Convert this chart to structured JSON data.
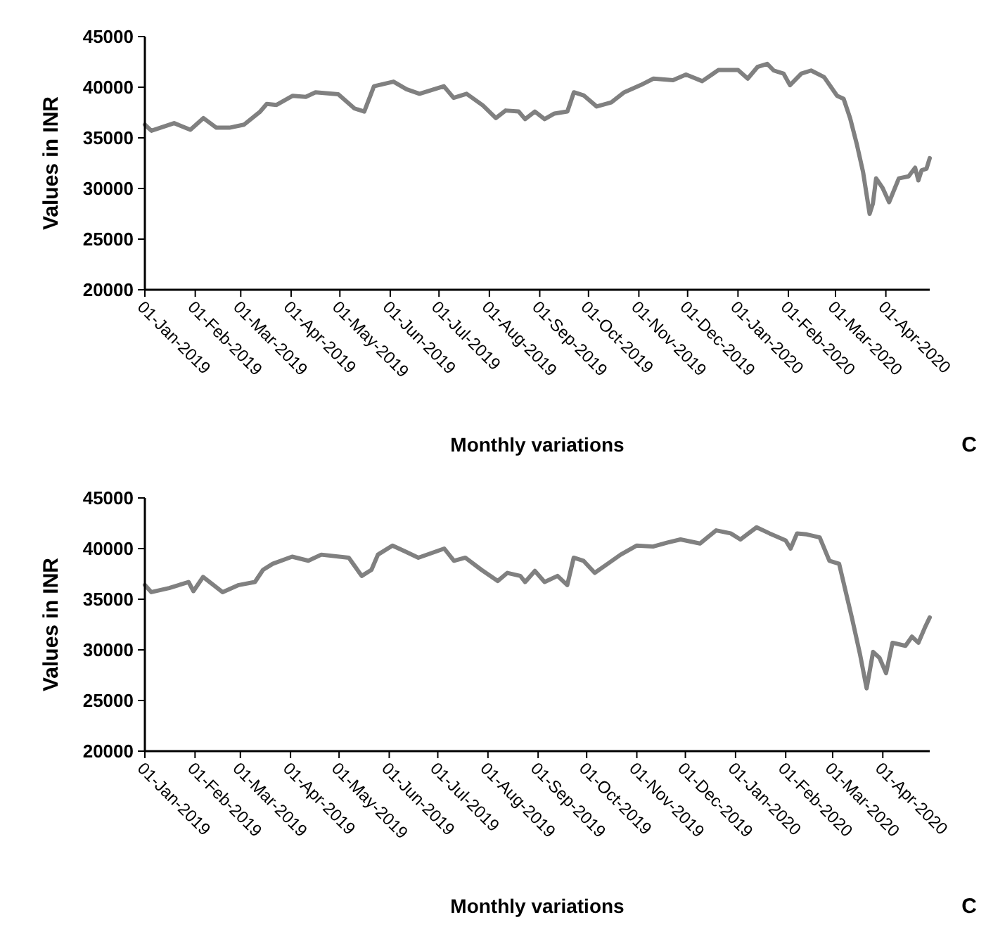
{
  "chart_data": [
    {
      "type": "line",
      "xlabel": "Monthly variations",
      "ylabel": "Values in INR",
      "annotations": [
        "C"
      ],
      "grid": false,
      "marker": "none",
      "line_style": "solid",
      "xlim": [
        "2019-01-01",
        "2020-04-28"
      ],
      "ylim": [
        20000,
        45000
      ],
      "yticks": [
        20000,
        25000,
        30000,
        35000,
        40000,
        45000
      ],
      "xticks": [
        {
          "value": "2019-01-01",
          "label": "01-Jan-2019"
        },
        {
          "value": "2019-02-01",
          "label": "01-Feb-2019"
        },
        {
          "value": "2019-03-01",
          "label": "01-Mar-2019"
        },
        {
          "value": "2019-04-01",
          "label": "01-Apr-2019"
        },
        {
          "value": "2019-05-01",
          "label": "01-May-2019"
        },
        {
          "value": "2019-06-01",
          "label": "01-Jun-2019"
        },
        {
          "value": "2019-07-01",
          "label": "01-Jul-2019"
        },
        {
          "value": "2019-08-01",
          "label": "01-Aug-2019"
        },
        {
          "value": "2019-09-01",
          "label": "01-Sep-2019"
        },
        {
          "value": "2019-10-01",
          "label": "01-Oct-2019"
        },
        {
          "value": "2019-11-01",
          "label": "01-Nov-2019"
        },
        {
          "value": "2019-12-01",
          "label": "01-Dec-2019"
        },
        {
          "value": "2020-01-01",
          "label": "01-Jan-2020"
        },
        {
          "value": "2020-02-01",
          "label": "01-Feb-2020"
        },
        {
          "value": "2020-03-01",
          "label": "01-Mar-2020"
        },
        {
          "value": "2020-04-01",
          "label": "01-Apr-2020"
        }
      ],
      "x": [
        "2019-01-01",
        "2019-01-05",
        "2019-01-19",
        "2019-01-29",
        "2019-02-06",
        "2019-02-14",
        "2019-02-22",
        "2019-03-03",
        "2019-03-13",
        "2019-03-17",
        "2019-03-23",
        "2019-04-02",
        "2019-04-10",
        "2019-04-16",
        "2019-04-30",
        "2019-05-10",
        "2019-05-16",
        "2019-05-22",
        "2019-06-03",
        "2019-06-11",
        "2019-06-19",
        "2019-07-04",
        "2019-07-10",
        "2019-07-18",
        "2019-07-28",
        "2019-08-05",
        "2019-08-11",
        "2019-08-19",
        "2019-08-23",
        "2019-08-29",
        "2019-09-04",
        "2019-09-10",
        "2019-09-18",
        "2019-09-22",
        "2019-09-28",
        "2019-10-06",
        "2019-10-15",
        "2019-10-23",
        "2019-11-02",
        "2019-11-10",
        "2019-11-22",
        "2019-11-30",
        "2019-12-10",
        "2019-12-20",
        "2020-01-01",
        "2020-01-07",
        "2020-01-13",
        "2020-01-19",
        "2020-01-23",
        "2020-01-29",
        "2020-02-02",
        "2020-02-09",
        "2020-02-15",
        "2020-02-23",
        "2020-03-02",
        "2020-03-06",
        "2020-03-10",
        "2020-03-14",
        "2020-03-18",
        "2020-03-22",
        "2020-03-24",
        "2020-03-26",
        "2020-03-30",
        "2020-04-03",
        "2020-04-09",
        "2020-04-15",
        "2020-04-19",
        "2020-04-21",
        "2020-04-23",
        "2020-04-26",
        "2020-04-28"
      ],
      "series": [
        {
          "color": "#808080",
          "values": [
            36300,
            35700,
            36450,
            35800,
            36950,
            36000,
            36000,
            36300,
            37600,
            38350,
            38250,
            39150,
            39050,
            39500,
            39300,
            37900,
            37600,
            40100,
            40550,
            39800,
            39350,
            40100,
            38950,
            39350,
            38200,
            36950,
            37700,
            37600,
            36850,
            37600,
            36850,
            37400,
            37600,
            39500,
            39200,
            38100,
            38500,
            39500,
            40200,
            40850,
            40700,
            41250,
            40600,
            41700,
            41700,
            40850,
            42000,
            42300,
            41650,
            41350,
            40200,
            41350,
            41650,
            41000,
            39150,
            38850,
            36950,
            34450,
            31600,
            27500,
            28500,
            31000,
            30050,
            28650,
            31000,
            31200,
            32050,
            30800,
            31800,
            31950,
            33000
          ]
        }
      ]
    },
    {
      "type": "line",
      "xlabel": "Monthly variations",
      "ylabel": "Values in INR",
      "annotations": [
        "C"
      ],
      "grid": false,
      "marker": "none",
      "line_style": "solid",
      "xlim": [
        "2019-01-01",
        "2020-04-30"
      ],
      "ylim": [
        20000,
        45000
      ],
      "yticks": [
        20000,
        25000,
        30000,
        35000,
        40000,
        45000
      ],
      "xticks": [
        {
          "value": "2019-01-01",
          "label": "01-Jan-2019"
        },
        {
          "value": "2019-02-01",
          "label": "01-Feb-2019"
        },
        {
          "value": "2019-03-01",
          "label": "01-Mar-2019"
        },
        {
          "value": "2019-04-01",
          "label": "01-Apr-2019"
        },
        {
          "value": "2019-05-01",
          "label": "01-May-2019"
        },
        {
          "value": "2019-06-01",
          "label": "01-Jun-2019"
        },
        {
          "value": "2019-07-01",
          "label": "01-Jul-2019"
        },
        {
          "value": "2019-08-01",
          "label": "01-Aug-2019"
        },
        {
          "value": "2019-09-01",
          "label": "01-Sep-2019"
        },
        {
          "value": "2019-10-01",
          "label": "01-Oct-2019"
        },
        {
          "value": "2019-11-01",
          "label": "01-Nov-2019"
        },
        {
          "value": "2019-12-01",
          "label": "01-Dec-2019"
        },
        {
          "value": "2020-01-01",
          "label": "01-Jan-2020"
        },
        {
          "value": "2020-02-01",
          "label": "01-Feb-2020"
        },
        {
          "value": "2020-03-01",
          "label": "01-Mar-2020"
        },
        {
          "value": "2020-04-01",
          "label": "01-Apr-2020"
        }
      ],
      "x": [
        "2019-01-01",
        "2019-01-05",
        "2019-01-16",
        "2019-01-28",
        "2019-01-31",
        "2019-02-06",
        "2019-02-18",
        "2019-02-28",
        "2019-03-10",
        "2019-03-15",
        "2019-03-21",
        "2019-04-02",
        "2019-04-12",
        "2019-04-20",
        "2019-05-07",
        "2019-05-15",
        "2019-05-21",
        "2019-05-25",
        "2019-06-03",
        "2019-06-11",
        "2019-06-19",
        "2019-07-05",
        "2019-07-11",
        "2019-07-18",
        "2019-07-28",
        "2019-08-07",
        "2019-08-13",
        "2019-08-21",
        "2019-08-24",
        "2019-08-30",
        "2019-09-05",
        "2019-09-13",
        "2019-09-19",
        "2019-09-23",
        "2019-09-29",
        "2019-10-06",
        "2019-10-14",
        "2019-10-22",
        "2019-11-01",
        "2019-11-11",
        "2019-11-20",
        "2019-11-28",
        "2019-12-10",
        "2019-12-20",
        "2019-12-29",
        "2020-01-04",
        "2020-01-14",
        "2020-01-22",
        "2020-02-01",
        "2020-02-04",
        "2020-02-08",
        "2020-02-14",
        "2020-02-22",
        "2020-02-28",
        "2020-03-05",
        "2020-03-09",
        "2020-03-13",
        "2020-03-18",
        "2020-03-22",
        "2020-03-26",
        "2020-03-30",
        "2020-04-03",
        "2020-04-07",
        "2020-04-15",
        "2020-04-19",
        "2020-04-23",
        "2020-04-27",
        "2020-04-30"
      ],
      "series": [
        {
          "color": "#808080",
          "values": [
            36400,
            35700,
            36100,
            36700,
            35800,
            37200,
            35700,
            36400,
            36700,
            37900,
            38500,
            39200,
            38800,
            39400,
            39100,
            37300,
            37900,
            39400,
            40300,
            39700,
            39100,
            40000,
            38800,
            39100,
            37900,
            36800,
            37600,
            37300,
            36700,
            37800,
            36700,
            37300,
            36400,
            39100,
            38800,
            37600,
            38500,
            39400,
            40300,
            40200,
            40600,
            40900,
            40500,
            41800,
            41500,
            40900,
            42100,
            41500,
            40800,
            40000,
            41500,
            41400,
            41100,
            38800,
            38500,
            35800,
            33100,
            29500,
            26200,
            29800,
            29200,
            27700,
            30700,
            30400,
            31300,
            30700,
            32200,
            33200
          ]
        }
      ]
    }
  ]
}
